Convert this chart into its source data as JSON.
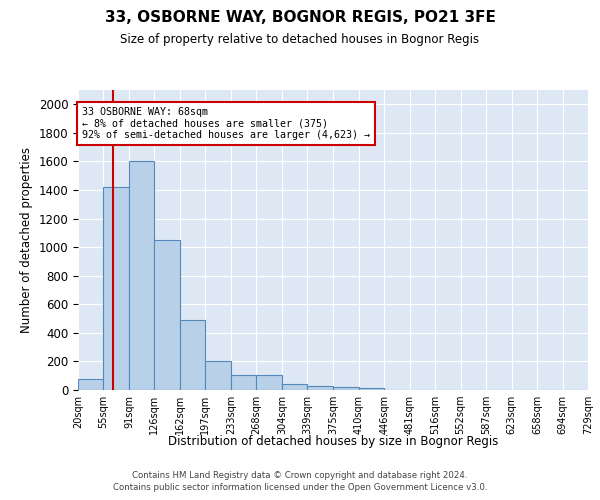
{
  "title_line1": "33, OSBORNE WAY, BOGNOR REGIS, PO21 3FE",
  "title_line2": "Size of property relative to detached houses in Bognor Regis",
  "xlabel": "Distribution of detached houses by size in Bognor Regis",
  "ylabel": "Number of detached properties",
  "bar_values": [
    80,
    1420,
    1600,
    1050,
    490,
    200,
    105,
    105,
    40,
    30,
    20,
    15,
    0,
    0,
    0,
    0,
    0,
    0,
    0,
    0
  ],
  "bin_edges": [
    20,
    55,
    91,
    126,
    162,
    197,
    233,
    268,
    304,
    339,
    375,
    410,
    446,
    481,
    516,
    552,
    587,
    623,
    658,
    694,
    729
  ],
  "tick_labels": [
    "20sqm",
    "55sqm",
    "91sqm",
    "126sqm",
    "162sqm",
    "197sqm",
    "233sqm",
    "268sqm",
    "304sqm",
    "339sqm",
    "375sqm",
    "410sqm",
    "446sqm",
    "481sqm",
    "516sqm",
    "552sqm",
    "587sqm",
    "623sqm",
    "658sqm",
    "694sqm",
    "729sqm"
  ],
  "bar_color": "#b8d0e8",
  "bar_edge_color": "#5588bb",
  "vline_x": 68,
  "vline_color": "#cc0000",
  "annotation_text": "33 OSBORNE WAY: 68sqm\n← 8% of detached houses are smaller (375)\n92% of semi-detached houses are larger (4,623) →",
  "annotation_box_color": "#ffffff",
  "annotation_box_edge": "#cc0000",
  "ylim": [
    0,
    2100
  ],
  "yticks": [
    0,
    200,
    400,
    600,
    800,
    1000,
    1200,
    1400,
    1600,
    1800,
    2000
  ],
  "bg_color": "#dde8f4",
  "fig_bg_color": "#ffffff",
  "footer1": "Contains HM Land Registry data © Crown copyright and database right 2024.",
  "footer2": "Contains public sector information licensed under the Open Government Licence v3.0."
}
